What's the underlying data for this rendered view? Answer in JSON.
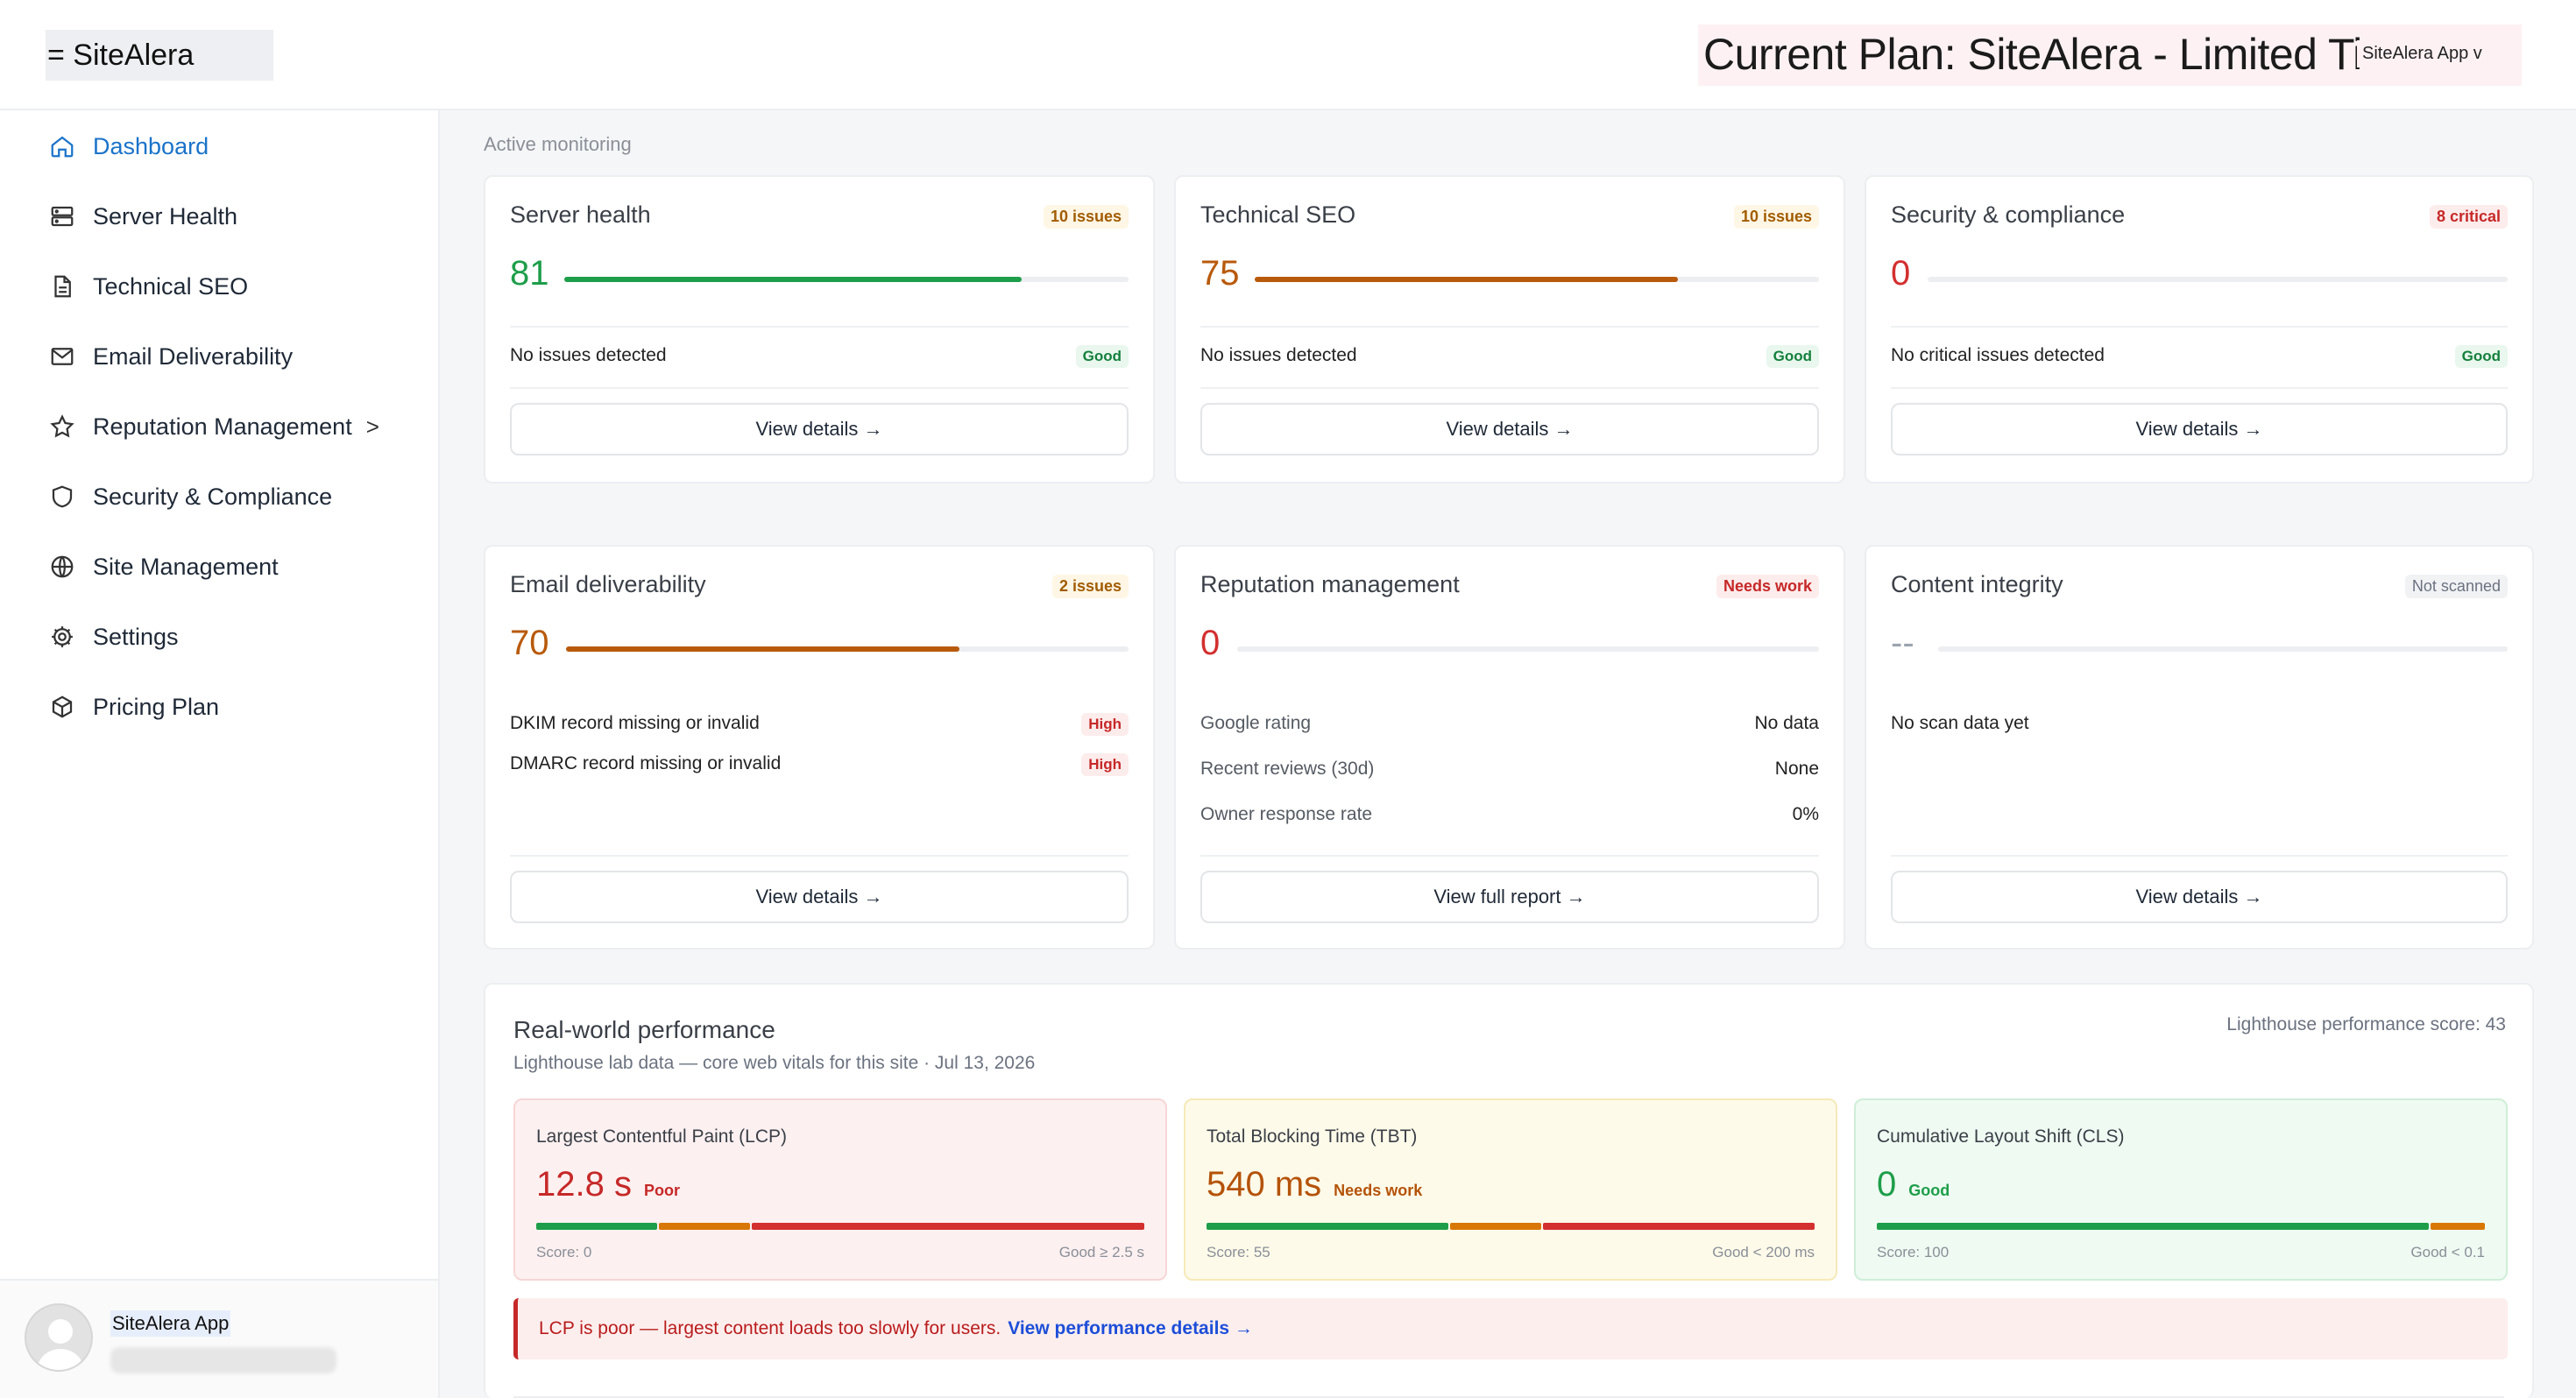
{
  "header": {
    "brand": "= SiteAlera",
    "plan_title": "Current Plan: SiteAlera - Limited Ti",
    "plan_app": "SiteAlera App v"
  },
  "sidebar": {
    "items": [
      {
        "label": "Dashboard",
        "icon": "home-icon",
        "active": true
      },
      {
        "label": "Server Health",
        "icon": "server-icon"
      },
      {
        "label": "Technical SEO",
        "icon": "document-icon"
      },
      {
        "label": "Email Deliverability",
        "icon": "mail-icon"
      },
      {
        "label": "Reputation Management",
        "icon": "star-icon",
        "chevron": ">"
      },
      {
        "label": "Security & Compliance",
        "icon": "shield-icon"
      },
      {
        "label": "Site Management",
        "icon": "globe-icon"
      },
      {
        "label": "Settings",
        "icon": "gear-icon"
      },
      {
        "label": "Pricing Plan",
        "icon": "box-icon"
      }
    ],
    "user": {
      "name": "SiteAlera App"
    }
  },
  "main": {
    "section_label": "Active monitoring",
    "cards": {
      "server_health": {
        "title": "Server health",
        "badge": "10 issues",
        "score": "81",
        "score_value": 81,
        "row": "No issues detected",
        "row_badge": "Good",
        "button": "View details →"
      },
      "technical_seo": {
        "title": "Technical SEO",
        "badge": "10 issues",
        "score": "75",
        "score_value": 75,
        "row": "No issues detected",
        "row_badge": "Good",
        "button": "View details →"
      },
      "security": {
        "title": "Security & compliance",
        "badge": "8 critical",
        "score": "0",
        "score_value": 0,
        "row": "No critical issues detected",
        "row_badge": "Good",
        "button": "View details →"
      },
      "email": {
        "title": "Email deliverability",
        "badge": "2 issues",
        "score": "70",
        "score_value": 70,
        "rows": [
          {
            "text": "DKIM record missing or invalid",
            "badge": "High"
          },
          {
            "text": "DMARC record missing or invalid",
            "badge": "High"
          }
        ],
        "button": "View details →"
      },
      "reputation": {
        "title": "Reputation management",
        "badge": "Needs work",
        "score": "0",
        "score_value": 0,
        "rows": [
          {
            "label": "Google rating",
            "value": "No data"
          },
          {
            "label": "Recent reviews (30d)",
            "value": "None"
          },
          {
            "label": "Owner response rate",
            "value": "0%"
          }
        ],
        "button": "View full report →"
      },
      "content": {
        "title": "Content integrity",
        "badge": "Not scanned",
        "score": "--",
        "row": "No scan data yet",
        "button": "View details →"
      }
    },
    "performance": {
      "title": "Real-world performance",
      "subtitle": "Lighthouse lab data — core web vitals for this site · Jul 13, 2026",
      "score_label": "Lighthouse performance score: 43",
      "metrics": [
        {
          "title": "Largest Contentful Paint (LCP)",
          "value": "12.8 s",
          "status": "Poor",
          "score": "Score: 0",
          "threshold": "Good ≥ 2.5 s"
        },
        {
          "title": "Total Blocking Time (TBT)",
          "value": "540 ms",
          "status": "Needs work",
          "score": "Score: 55",
          "threshold": "Good < 200 ms"
        },
        {
          "title": "Cumulative Layout Shift (CLS)",
          "value": "0",
          "status": "Good",
          "score": "Score: 100",
          "threshold": "Good < 0.1"
        }
      ],
      "alert_text": "LCP is poor — largest content loads too slowly for users.",
      "alert_link": "View performance details →"
    }
  },
  "colors": {
    "green": "#1e9e4a",
    "orange": "#b85a0b",
    "red": "#d32f2f",
    "accent": "#1a73c9"
  }
}
